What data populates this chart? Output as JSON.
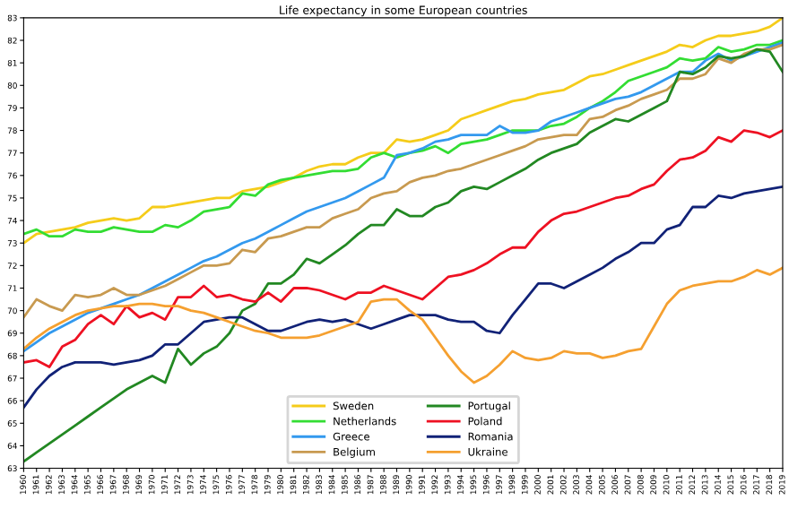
{
  "chart_data": {
    "type": "line",
    "title": "Life expectancy in some European countries",
    "categories": [
      "1960",
      "1961",
      "1962",
      "1963",
      "1964",
      "1965",
      "1966",
      "1967",
      "1968",
      "1969",
      "1970",
      "1971",
      "1972",
      "1973",
      "1974",
      "1975",
      "1976",
      "1977",
      "1978",
      "1979",
      "1980",
      "1981",
      "1982",
      "1983",
      "1984",
      "1985",
      "1986",
      "1987",
      "1988",
      "1989",
      "1990",
      "1991",
      "1992",
      "1993",
      "1994",
      "1995",
      "1996",
      "1997",
      "1998",
      "1999",
      "2000",
      "2001",
      "2002",
      "2003",
      "2004",
      "2005",
      "2006",
      "2007",
      "2008",
      "2009",
      "2010",
      "2011",
      "2012",
      "2013",
      "2014",
      "2015",
      "2016",
      "2017",
      "2018",
      "2019"
    ],
    "ylim": [
      63,
      83
    ],
    "yticks": [
      63,
      64,
      65,
      66,
      67,
      68,
      69,
      70,
      71,
      72,
      73,
      74,
      75,
      76,
      77,
      78,
      79,
      80,
      81,
      82,
      83
    ],
    "grid": false,
    "legend": "bottom",
    "marker": "none",
    "line_style": "solid",
    "series": [
      {
        "name": "Sweden",
        "color": "#f5cc1a",
        "values": [
          73.0,
          73.4,
          73.5,
          73.6,
          73.7,
          73.9,
          74.0,
          74.1,
          74.0,
          74.1,
          74.6,
          74.6,
          74.7,
          74.8,
          74.9,
          75.0,
          75.0,
          75.3,
          75.4,
          75.5,
          75.7,
          75.9,
          76.2,
          76.4,
          76.5,
          76.5,
          76.8,
          77.0,
          77.0,
          77.6,
          77.5,
          77.6,
          77.8,
          78.0,
          78.5,
          78.7,
          78.9,
          79.1,
          79.3,
          79.4,
          79.6,
          79.7,
          79.8,
          80.1,
          80.4,
          80.5,
          80.7,
          80.9,
          81.1,
          81.3,
          81.5,
          81.8,
          81.7,
          82.0,
          82.2,
          82.2,
          82.3,
          82.4,
          82.6,
          83.0
        ]
      },
      {
        "name": "Netherlands",
        "color": "#33dd33",
        "values": [
          73.4,
          73.6,
          73.3,
          73.3,
          73.6,
          73.5,
          73.5,
          73.7,
          73.6,
          73.5,
          73.5,
          73.8,
          73.7,
          74.0,
          74.4,
          74.5,
          74.6,
          75.2,
          75.1,
          75.6,
          75.8,
          75.9,
          76.0,
          76.1,
          76.2,
          76.2,
          76.3,
          76.8,
          77.0,
          76.8,
          77.0,
          77.1,
          77.3,
          77.0,
          77.4,
          77.5,
          77.6,
          77.8,
          78.0,
          78.0,
          78.0,
          78.2,
          78.3,
          78.6,
          79.0,
          79.3,
          79.7,
          80.2,
          80.4,
          80.6,
          80.8,
          81.2,
          81.1,
          81.2,
          81.7,
          81.5,
          81.6,
          81.8,
          81.8,
          82.0
        ]
      },
      {
        "name": "Greece",
        "color": "#3399ee",
        "values": [
          68.2,
          68.6,
          69.0,
          69.3,
          69.6,
          69.9,
          70.1,
          70.3,
          70.5,
          70.7,
          71.0,
          71.3,
          71.6,
          71.9,
          72.2,
          72.4,
          72.7,
          73.0,
          73.2,
          73.5,
          73.8,
          74.1,
          74.4,
          74.6,
          74.8,
          75.0,
          75.3,
          75.6,
          75.9,
          76.9,
          77.0,
          77.2,
          77.5,
          77.6,
          77.8,
          77.8,
          77.8,
          78.2,
          77.9,
          77.9,
          78.0,
          78.4,
          78.6,
          78.8,
          79.0,
          79.2,
          79.4,
          79.5,
          79.7,
          80.0,
          80.3,
          80.6,
          80.6,
          81.1,
          81.4,
          81.1,
          81.3,
          81.5,
          81.7,
          81.9
        ]
      },
      {
        "name": "Belgium",
        "color": "#c89a50",
        "values": [
          69.7,
          70.5,
          70.2,
          70.0,
          70.7,
          70.6,
          70.7,
          71.0,
          70.7,
          70.7,
          70.9,
          71.1,
          71.4,
          71.7,
          72.0,
          72.0,
          72.1,
          72.7,
          72.6,
          73.2,
          73.3,
          73.5,
          73.7,
          73.7,
          74.1,
          74.3,
          74.5,
          75.0,
          75.2,
          75.3,
          75.7,
          75.9,
          76.0,
          76.2,
          76.3,
          76.5,
          76.7,
          76.9,
          77.1,
          77.3,
          77.6,
          77.7,
          77.8,
          77.8,
          78.5,
          78.6,
          78.9,
          79.1,
          79.4,
          79.6,
          79.8,
          80.3,
          80.3,
          80.5,
          81.2,
          81.0,
          81.4,
          81.6,
          81.6,
          81.8
        ]
      },
      {
        "name": "Portugal",
        "color": "#228822",
        "values": [
          63.3,
          63.7,
          64.1,
          64.5,
          64.9,
          65.3,
          65.7,
          66.1,
          66.5,
          66.8,
          67.1,
          66.8,
          68.3,
          67.6,
          68.1,
          68.4,
          69.0,
          70.0,
          70.3,
          71.2,
          71.2,
          71.6,
          72.3,
          72.1,
          72.5,
          72.9,
          73.4,
          73.8,
          73.8,
          74.5,
          74.2,
          74.2,
          74.6,
          74.8,
          75.3,
          75.5,
          75.4,
          75.7,
          76.0,
          76.3,
          76.7,
          77.0,
          77.2,
          77.4,
          77.9,
          78.2,
          78.5,
          78.4,
          78.7,
          79.0,
          79.3,
          80.6,
          80.5,
          80.8,
          81.3,
          81.2,
          81.3,
          81.6,
          81.5,
          80.6
        ]
      },
      {
        "name": "Poland",
        "color": "#ee1122",
        "values": [
          67.7,
          67.8,
          67.5,
          68.4,
          68.7,
          69.4,
          69.8,
          69.4,
          70.2,
          69.7,
          69.9,
          69.6,
          70.6,
          70.6,
          71.1,
          70.6,
          70.7,
          70.5,
          70.4,
          70.8,
          70.4,
          71.0,
          71.0,
          70.9,
          70.7,
          70.5,
          70.8,
          70.8,
          71.1,
          70.9,
          70.7,
          70.5,
          71.0,
          71.5,
          71.6,
          71.8,
          72.1,
          72.5,
          72.8,
          72.8,
          73.5,
          74.0,
          74.3,
          74.4,
          74.6,
          74.8,
          75.0,
          75.1,
          75.4,
          75.6,
          76.2,
          76.7,
          76.8,
          77.1,
          77.7,
          77.5,
          78.0,
          77.9,
          77.7,
          78.0
        ]
      },
      {
        "name": "Romania",
        "color": "#112277",
        "values": [
          65.7,
          66.5,
          67.1,
          67.5,
          67.7,
          67.7,
          67.7,
          67.6,
          67.7,
          67.8,
          68.0,
          68.5,
          68.5,
          69.0,
          69.5,
          69.6,
          69.7,
          69.7,
          69.4,
          69.1,
          69.1,
          69.3,
          69.5,
          69.6,
          69.5,
          69.6,
          69.4,
          69.2,
          69.4,
          69.6,
          69.8,
          69.8,
          69.8,
          69.6,
          69.5,
          69.5,
          69.1,
          69.0,
          69.8,
          70.5,
          71.2,
          71.2,
          71.0,
          71.3,
          71.6,
          71.9,
          72.3,
          72.6,
          73.0,
          73.0,
          73.6,
          73.8,
          74.6,
          74.6,
          75.1,
          75.0,
          75.2,
          75.3,
          75.4,
          75.5
        ]
      },
      {
        "name": "Ukraine",
        "color": "#f5a030",
        "values": [
          68.3,
          68.8,
          69.2,
          69.5,
          69.8,
          70.0,
          70.1,
          70.2,
          70.2,
          70.3,
          70.3,
          70.2,
          70.2,
          70.0,
          69.9,
          69.7,
          69.5,
          69.3,
          69.1,
          69.0,
          68.8,
          68.8,
          68.8,
          68.9,
          69.1,
          69.3,
          69.5,
          70.4,
          70.5,
          70.5,
          70.0,
          69.6,
          68.8,
          68.0,
          67.3,
          66.8,
          67.1,
          67.6,
          68.2,
          67.9,
          67.8,
          67.9,
          68.2,
          68.1,
          68.1,
          67.9,
          68.0,
          68.2,
          68.3,
          69.3,
          70.3,
          70.9,
          71.1,
          71.2,
          71.3,
          71.3,
          71.5,
          71.8,
          71.6,
          71.9
        ]
      }
    ]
  }
}
